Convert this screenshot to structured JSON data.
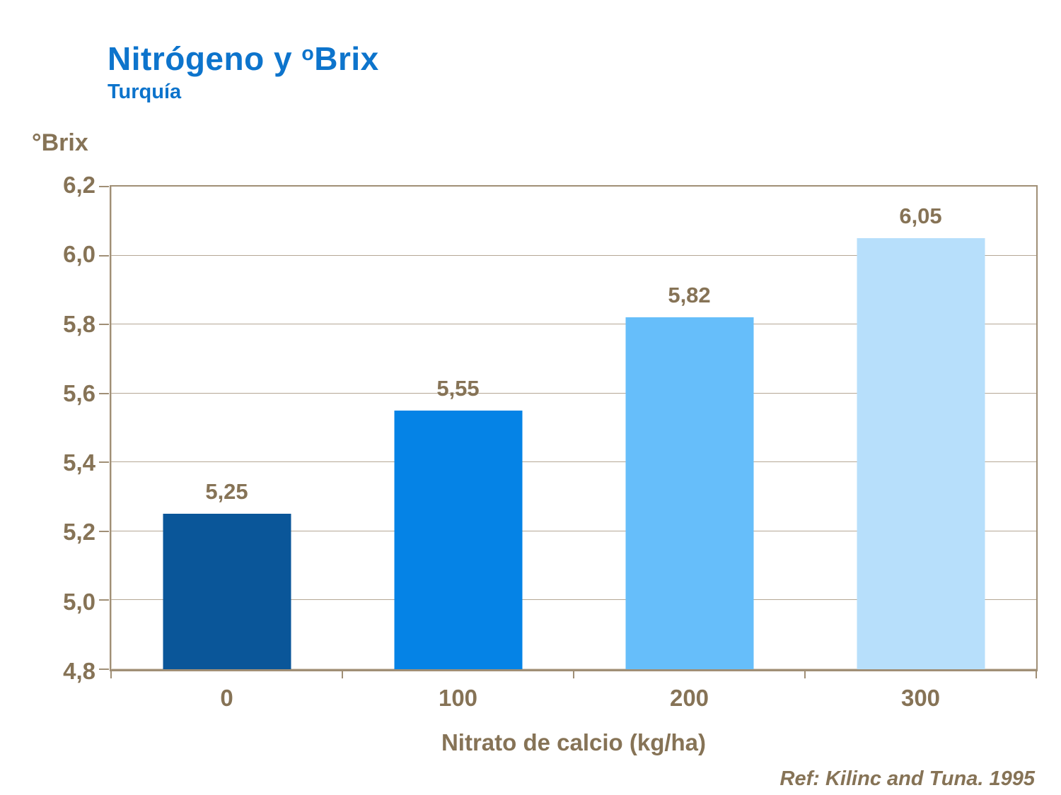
{
  "header": {
    "title_pre": "Nitrógeno y ",
    "title_sup": "o",
    "title_post": "Brix",
    "subtitle": "Turquía"
  },
  "y_axis": {
    "unit_label": "°Brix",
    "tick_labels": [
      "6,2",
      "6,0",
      "5,8",
      "5,6",
      "5,4",
      "5,2",
      "5,0",
      "4,8"
    ]
  },
  "footer": {
    "reference": "Ref: Kilinc and Tuna. 1995"
  },
  "chart_data": {
    "type": "bar",
    "title": "Nitrógeno y ºBrix",
    "subtitle": "Turquía",
    "categories": [
      "0",
      "100",
      "200",
      "300"
    ],
    "values": [
      5.25,
      5.55,
      5.82,
      6.05
    ],
    "value_labels": [
      "5,25",
      "5,55",
      "5,82",
      "6,05"
    ],
    "bar_colors": [
      "#0A5699",
      "#0583E6",
      "#66BEFA",
      "#B7DFFB"
    ],
    "xlabel": "Nitrato de calcio (kg/ha)",
    "ylabel": "°Brix",
    "ylim": [
      4.8,
      6.2
    ],
    "ytick_step": 0.2,
    "grid": "horizontal",
    "legend_position": "none"
  },
  "colors": {
    "title_blue": "#0D74CC",
    "text_brown": "#867356",
    "gridline": "#B5A795",
    "axis_border": "#A08F76",
    "background": "#FFFFFF"
  }
}
